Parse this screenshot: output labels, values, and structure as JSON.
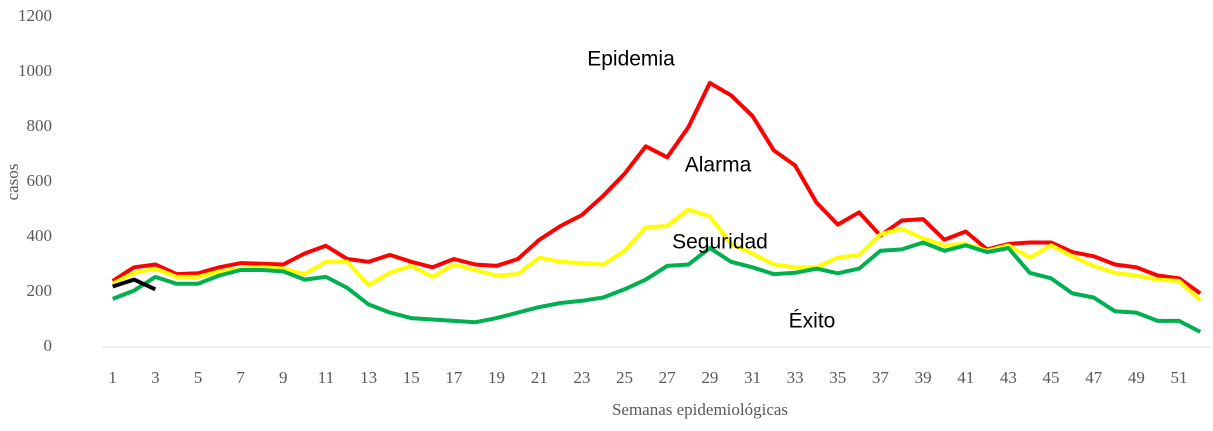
{
  "chart_data": {
    "type": "line",
    "x_label": "Semanas epidemiológicas",
    "y_label": "casos",
    "annotations": [
      "Epidemia",
      "Alarma",
      "Seguridad",
      "Éxito"
    ],
    "categories": [
      1,
      null,
      3,
      null,
      5,
      null,
      7,
      null,
      9,
      null,
      11,
      null,
      13,
      null,
      15,
      null,
      17,
      null,
      19,
      null,
      21,
      null,
      23,
      null,
      25,
      null,
      27,
      null,
      29,
      null,
      31,
      null,
      33,
      null,
      35,
      null,
      37,
      null,
      39,
      null,
      41,
      null,
      43,
      null,
      45,
      null,
      47,
      null,
      49,
      null,
      51,
      null
    ],
    "ylim": [
      0,
      1200
    ],
    "yticks": [
      0,
      200,
      400,
      600,
      800,
      1000,
      1200
    ],
    "grid": false,
    "series": [
      {
        "color": "#ff0000",
        "values": [
          240,
          290,
          300,
          265,
          268,
          290,
          305,
          303,
          300,
          340,
          368,
          320,
          310,
          335,
          310,
          290,
          320,
          300,
          295,
          320,
          390,
          440,
          480,
          550,
          630,
          730,
          690,
          800,
          960,
          915,
          840,
          715,
          660,
          525,
          445,
          490,
          405,
          460,
          465,
          390,
          420,
          355,
          375,
          380,
          380,
          345,
          330,
          300,
          290,
          260,
          250,
          195
        ]
      },
      {
        "color": "#ffff00",
        "values": [
          230,
          270,
          285,
          255,
          255,
          275,
          285,
          290,
          285,
          265,
          310,
          310,
          225,
          270,
          295,
          255,
          300,
          280,
          260,
          265,
          325,
          310,
          305,
          300,
          350,
          435,
          440,
          500,
          475,
          375,
          340,
          300,
          290,
          290,
          325,
          335,
          410,
          430,
          395,
          370,
          375,
          350,
          370,
          325,
          370,
          330,
          295,
          270,
          260,
          245,
          240,
          170
        ]
      },
      {
        "color": "#00b050",
        "values": [
          175,
          205,
          255,
          230,
          230,
          260,
          280,
          280,
          275,
          245,
          255,
          215,
          155,
          125,
          105,
          100,
          95,
          90,
          105,
          125,
          145,
          160,
          168,
          180,
          210,
          245,
          295,
          300,
          360,
          310,
          290,
          265,
          270,
          285,
          268,
          285,
          350,
          355,
          380,
          350,
          370,
          345,
          360,
          270,
          250,
          195,
          180,
          130,
          125,
          95,
          95,
          55
        ]
      },
      {
        "color": "#000000",
        "values": [
          220,
          245,
          210,
          null,
          null,
          null,
          null,
          null,
          null,
          null,
          null,
          null,
          null,
          null,
          null,
          null,
          null,
          null,
          null,
          null,
          null,
          null,
          null,
          null,
          null,
          null,
          null,
          null,
          null,
          null,
          null,
          null,
          null,
          null,
          null,
          null,
          null,
          null,
          null,
          null,
          null,
          null,
          null,
          null,
          null,
          null,
          null,
          null,
          null,
          null,
          null,
          null
        ]
      }
    ]
  }
}
